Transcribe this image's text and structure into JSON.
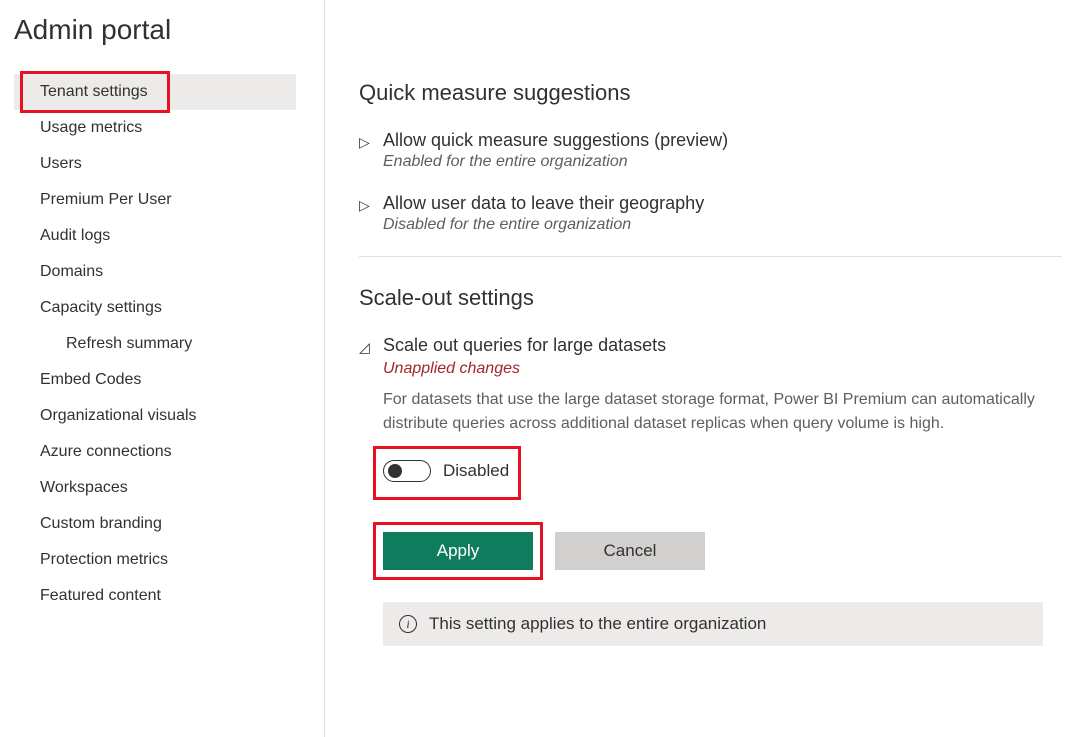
{
  "header": {
    "title": "Admin portal"
  },
  "sidebar": {
    "items": [
      {
        "label": "Tenant settings",
        "active": true
      },
      {
        "label": "Usage metrics"
      },
      {
        "label": "Users"
      },
      {
        "label": "Premium Per User"
      },
      {
        "label": "Audit logs"
      },
      {
        "label": "Domains"
      },
      {
        "label": "Capacity settings"
      },
      {
        "label": "Refresh summary",
        "indent": true
      },
      {
        "label": "Embed Codes"
      },
      {
        "label": "Organizational visuals"
      },
      {
        "label": "Azure connections"
      },
      {
        "label": "Workspaces"
      },
      {
        "label": "Custom branding"
      },
      {
        "label": "Protection metrics"
      },
      {
        "label": "Featured content"
      }
    ]
  },
  "sections": {
    "quick_measure": {
      "heading": "Quick measure suggestions",
      "settings": [
        {
          "title": "Allow quick measure suggestions (preview)",
          "status": "Enabled for the entire organization"
        },
        {
          "title": "Allow user data to leave their geography",
          "status": "Disabled for the entire organization"
        }
      ]
    },
    "scale_out": {
      "heading": "Scale-out settings",
      "setting_title": "Scale out queries for large datasets",
      "unapplied": "Unapplied changes",
      "description": "For datasets that use the large dataset storage format, Power BI Premium can automatically distribute queries across additional dataset replicas when query volume is high.",
      "toggle_label": "Disabled",
      "apply_label": "Apply",
      "cancel_label": "Cancel",
      "info_text": "This setting applies to the entire organization"
    }
  },
  "colors": {
    "highlight": "#e81123",
    "primary_btn": "#107c5e",
    "secondary_btn": "#d2d0ce",
    "text": "#323130",
    "muted": "#605e5c",
    "warning_text": "#a4262c",
    "divider": "#e1dfdd",
    "panel_bg": "#edebe9"
  }
}
